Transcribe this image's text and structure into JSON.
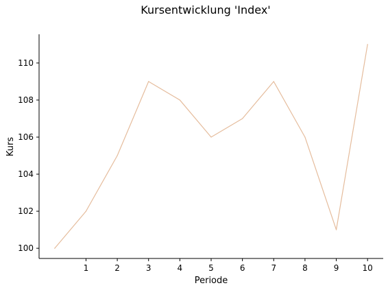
{
  "chart_data": {
    "type": "line",
    "title": "Kursentwicklung 'Index'",
    "xlabel": "Periode",
    "ylabel": "Kurs",
    "x": [
      0,
      1,
      2,
      3,
      4,
      5,
      6,
      7,
      8,
      9,
      10
    ],
    "xticks": [
      1,
      2,
      3,
      4,
      5,
      6,
      7,
      8,
      9,
      10
    ],
    "yticks": [
      100,
      102,
      104,
      106,
      108,
      110
    ],
    "xlim": [
      -0.5,
      10.5
    ],
    "ylim": [
      99.45,
      111.55
    ],
    "series": [
      {
        "values": [
          100,
          102,
          105,
          109,
          108,
          106,
          107,
          109,
          106,
          101,
          111
        ],
        "color": "#e5bc9c"
      }
    ],
    "grid": false,
    "spines": [
      "left",
      "bottom"
    ]
  }
}
